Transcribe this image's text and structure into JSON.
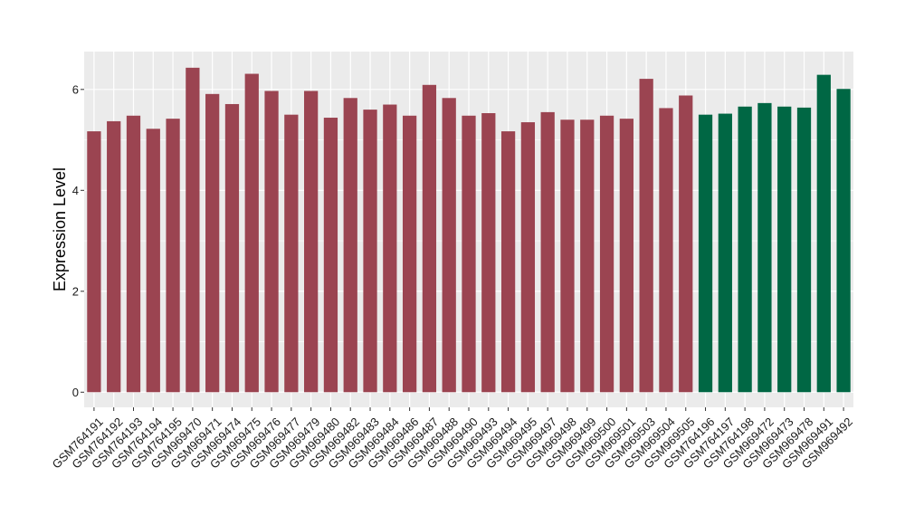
{
  "chart_data": {
    "type": "bar",
    "ylabel": "Expression Level",
    "xlabel": "",
    "ylim": [
      -0.3,
      6.75
    ],
    "yticks": [
      0,
      2,
      4,
      6
    ],
    "grid": true,
    "categories": [
      "GSM764191",
      "GSM764192",
      "GSM764193",
      "GSM764194",
      "GSM764195",
      "GSM969470",
      "GSM969471",
      "GSM969474",
      "GSM969475",
      "GSM969476",
      "GSM969477",
      "GSM969479",
      "GSM969480",
      "GSM969482",
      "GSM969483",
      "GSM969484",
      "GSM969486",
      "GSM969487",
      "GSM969488",
      "GSM969490",
      "GSM969493",
      "GSM969494",
      "GSM969495",
      "GSM969497",
      "GSM969498",
      "GSM969499",
      "GSM969500",
      "GSM969501",
      "GSM969503",
      "GSM969504",
      "GSM969505",
      "GSM764196",
      "GSM764197",
      "GSM764198",
      "GSM969472",
      "GSM969473",
      "GSM969478",
      "GSM969491",
      "GSM969492"
    ],
    "values": [
      5.17,
      5.37,
      5.48,
      5.22,
      5.42,
      6.43,
      5.91,
      5.71,
      6.31,
      5.97,
      5.5,
      5.97,
      5.44,
      5.83,
      5.6,
      5.7,
      5.48,
      6.09,
      5.83,
      5.48,
      5.53,
      5.17,
      5.35,
      5.55,
      5.4,
      5.4,
      5.48,
      5.42,
      6.21,
      5.63,
      5.88,
      5.5,
      5.52,
      5.66,
      5.73,
      5.66,
      5.64,
      6.29,
      6.01
    ],
    "bar_colors": [
      "#9b4451",
      "#9b4451",
      "#9b4451",
      "#9b4451",
      "#9b4451",
      "#9b4451",
      "#9b4451",
      "#9b4451",
      "#9b4451",
      "#9b4451",
      "#9b4451",
      "#9b4451",
      "#9b4451",
      "#9b4451",
      "#9b4451",
      "#9b4451",
      "#9b4451",
      "#9b4451",
      "#9b4451",
      "#9b4451",
      "#9b4451",
      "#9b4451",
      "#9b4451",
      "#9b4451",
      "#9b4451",
      "#9b4451",
      "#9b4451",
      "#9b4451",
      "#9b4451",
      "#9b4451",
      "#9b4451",
      "#006744",
      "#006744",
      "#006744",
      "#006744",
      "#006744",
      "#006744",
      "#006744",
      "#006744"
    ],
    "panel_background": "#ebebeb",
    "gridline_color": "#ffffff",
    "legend": "none"
  }
}
